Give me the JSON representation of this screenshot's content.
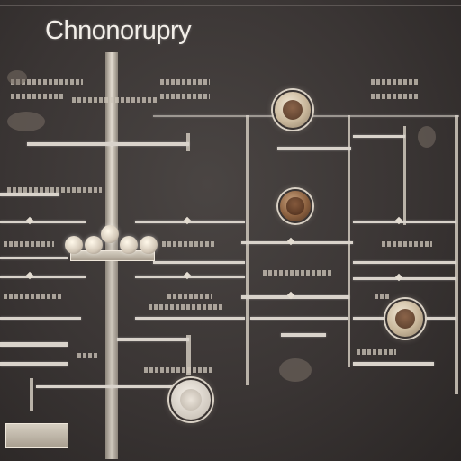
{
  "diagram": {
    "title": "Chnonorupry"
  },
  "colors": {
    "background": "#3a3534",
    "line": "#d9d3cb",
    "title": "#f2eee8",
    "node_ring": "#d8d0c4"
  }
}
